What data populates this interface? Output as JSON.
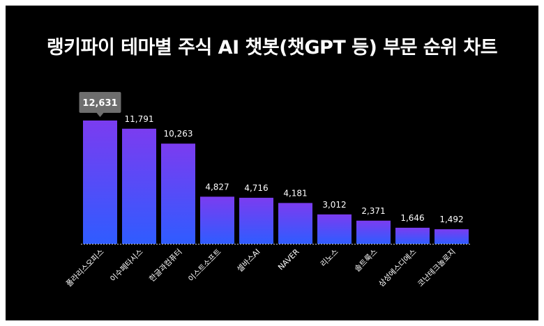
{
  "chart_data": {
    "type": "bar",
    "title": "랭키파이 테마별 주식 AI 챗봇(챗GPT 등) 부문 순위 차트",
    "categories": [
      "폴라리스오피스",
      "이수페타시스",
      "한글과컴퓨터",
      "이스트소프트",
      "셀바스AI",
      "NAVER",
      "리노스",
      "솔트룩스",
      "삼성에스디에스",
      "코난테크놀로지"
    ],
    "values": [
      12631,
      11791,
      10263,
      4827,
      4716,
      4181,
      3012,
      2371,
      1646,
      1492
    ],
    "value_labels": [
      "12,631",
      "11,791",
      "10,263",
      "4,827",
      "4,716",
      "4,181",
      "3,012",
      "2,371",
      "1,646",
      "1,492"
    ],
    "highlight_index": 0,
    "ylim": [
      0,
      12631
    ],
    "grid": false,
    "legend": "none",
    "colors": {
      "bar_top": "#7b3cf0",
      "bar_bottom": "#2f5cff",
      "tooltip": "#6e6e6e",
      "background": "#000000",
      "text": "#ffffff"
    }
  }
}
